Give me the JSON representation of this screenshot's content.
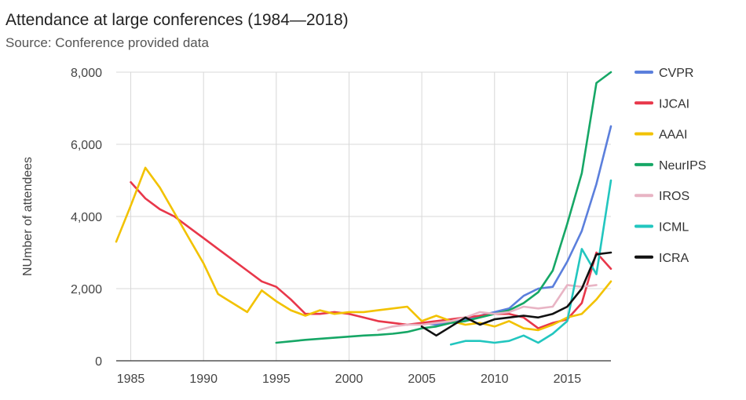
{
  "chart_data": {
    "type": "line",
    "title": "Attendance at large conferences (1984—2018)",
    "subtitle": "Source: Conference provided data",
    "ylabel": "NUmber of attendees",
    "xlabel": "",
    "xlim": [
      1984,
      2018
    ],
    "ylim": [
      0,
      8000
    ],
    "x_ticks": [
      1985,
      1990,
      1995,
      2000,
      2005,
      2010,
      2015
    ],
    "x_tick_labels": [
      "1985",
      "1990",
      "1995",
      "2000",
      "2005",
      "2010",
      "2015"
    ],
    "y_ticks": [
      0,
      2000,
      4000,
      6000,
      8000
    ],
    "y_tick_labels": [
      "0",
      "2,000",
      "4,000",
      "6,000",
      "8,000"
    ],
    "grid": true,
    "legend_position": "right",
    "series": [
      {
        "name": "CVPR",
        "color": "#5b7fdc",
        "points": [
          [
            2005,
            1050
          ],
          [
            2006,
            1000
          ],
          [
            2007,
            1100
          ],
          [
            2008,
            1150
          ],
          [
            2009,
            1250
          ],
          [
            2010,
            1350
          ],
          [
            2011,
            1450
          ],
          [
            2012,
            1800
          ],
          [
            2013,
            2000
          ],
          [
            2014,
            2050
          ],
          [
            2015,
            2750
          ],
          [
            2016,
            3600
          ],
          [
            2017,
            4900
          ],
          [
            2018,
            6500
          ]
        ]
      },
      {
        "name": "IJCAI",
        "color": "#e8374a",
        "points": [
          [
            1985,
            4950
          ],
          [
            1986,
            4500
          ],
          [
            1987,
            4200
          ],
          [
            1988,
            4000
          ],
          [
            1989,
            3700
          ],
          [
            1990,
            3400
          ],
          [
            1991,
            3100
          ],
          [
            1992,
            2800
          ],
          [
            1993,
            2500
          ],
          [
            1994,
            2200
          ],
          [
            1995,
            2050
          ],
          [
            1996,
            1700
          ],
          [
            1997,
            1300
          ],
          [
            1998,
            1300
          ],
          [
            1999,
            1350
          ],
          [
            2000,
            1300
          ],
          [
            2001,
            1200
          ],
          [
            2002,
            1100
          ],
          [
            2003,
            1050
          ],
          [
            2004,
            1000
          ],
          [
            2005,
            1050
          ],
          [
            2006,
            1100
          ],
          [
            2007,
            1150
          ],
          [
            2008,
            1200
          ],
          [
            2009,
            1250
          ],
          [
            2010,
            1300
          ],
          [
            2011,
            1300
          ],
          [
            2012,
            1200
          ],
          [
            2013,
            900
          ],
          [
            2014,
            1050
          ],
          [
            2015,
            1150
          ],
          [
            2016,
            1600
          ],
          [
            2017,
            3000
          ],
          [
            2018,
            2550
          ]
        ]
      },
      {
        "name": "AAAI",
        "color": "#f2c200",
        "points": [
          [
            1984,
            3300
          ],
          [
            1985,
            4300
          ],
          [
            1986,
            5350
          ],
          [
            1987,
            4800
          ],
          [
            1988,
            4100
          ],
          [
            1989,
            3400
          ],
          [
            1990,
            2700
          ],
          [
            1991,
            1850
          ],
          [
            1992,
            1600
          ],
          [
            1993,
            1350
          ],
          [
            1994,
            1950
          ],
          [
            1995,
            1650
          ],
          [
            1996,
            1400
          ],
          [
            1997,
            1250
          ],
          [
            1998,
            1400
          ],
          [
            1999,
            1300
          ],
          [
            2000,
            1350
          ],
          [
            2001,
            1350
          ],
          [
            2002,
            1400
          ],
          [
            2003,
            1450
          ],
          [
            2004,
            1500
          ],
          [
            2005,
            1100
          ],
          [
            2006,
            1250
          ],
          [
            2007,
            1100
          ],
          [
            2008,
            1000
          ],
          [
            2009,
            1050
          ],
          [
            2010,
            950
          ],
          [
            2011,
            1100
          ],
          [
            2012,
            900
          ],
          [
            2013,
            850
          ],
          [
            2014,
            1000
          ],
          [
            2015,
            1200
          ],
          [
            2016,
            1300
          ],
          [
            2017,
            1700
          ],
          [
            2018,
            2200
          ]
        ]
      },
      {
        "name": "NeurIPS",
        "color": "#16a766",
        "points": [
          [
            1995,
            500
          ],
          [
            1996,
            540
          ],
          [
            1997,
            580
          ],
          [
            1998,
            610
          ],
          [
            1999,
            640
          ],
          [
            2000,
            670
          ],
          [
            2001,
            700
          ],
          [
            2002,
            720
          ],
          [
            2003,
            750
          ],
          [
            2004,
            800
          ],
          [
            2005,
            900
          ],
          [
            2006,
            950
          ],
          [
            2007,
            1050
          ],
          [
            2008,
            1100
          ],
          [
            2009,
            1200
          ],
          [
            2010,
            1300
          ],
          [
            2011,
            1400
          ],
          [
            2012,
            1600
          ],
          [
            2013,
            1900
          ],
          [
            2014,
            2500
          ],
          [
            2015,
            3800
          ],
          [
            2016,
            5200
          ],
          [
            2017,
            7700
          ],
          [
            2018,
            8000
          ]
        ]
      },
      {
        "name": "IROS",
        "color": "#e8b4c4",
        "points": [
          [
            2002,
            850
          ],
          [
            2003,
            950
          ],
          [
            2004,
            1000
          ],
          [
            2005,
            1000
          ],
          [
            2006,
            1050
          ],
          [
            2007,
            1100
          ],
          [
            2008,
            1200
          ],
          [
            2009,
            1350
          ],
          [
            2010,
            1300
          ],
          [
            2011,
            1350
          ],
          [
            2012,
            1500
          ],
          [
            2013,
            1450
          ],
          [
            2014,
            1500
          ],
          [
            2015,
            2100
          ],
          [
            2016,
            2050
          ],
          [
            2017,
            2100
          ]
        ]
      },
      {
        "name": "ICML",
        "color": "#22c6bf",
        "points": [
          [
            2007,
            450
          ],
          [
            2008,
            550
          ],
          [
            2009,
            550
          ],
          [
            2010,
            500
          ],
          [
            2011,
            550
          ],
          [
            2012,
            700
          ],
          [
            2013,
            500
          ],
          [
            2014,
            750
          ],
          [
            2015,
            1100
          ],
          [
            2016,
            3100
          ],
          [
            2017,
            2400
          ],
          [
            2018,
            5000
          ]
        ]
      },
      {
        "name": "ICRA",
        "color": "#111111",
        "points": [
          [
            2005,
            950
          ],
          [
            2006,
            700
          ],
          [
            2007,
            950
          ],
          [
            2008,
            1200
          ],
          [
            2009,
            1000
          ],
          [
            2010,
            1150
          ],
          [
            2011,
            1200
          ],
          [
            2012,
            1250
          ],
          [
            2013,
            1200
          ],
          [
            2014,
            1300
          ],
          [
            2015,
            1500
          ],
          [
            2016,
            2000
          ],
          [
            2017,
            2950
          ],
          [
            2018,
            3000
          ]
        ]
      }
    ]
  }
}
